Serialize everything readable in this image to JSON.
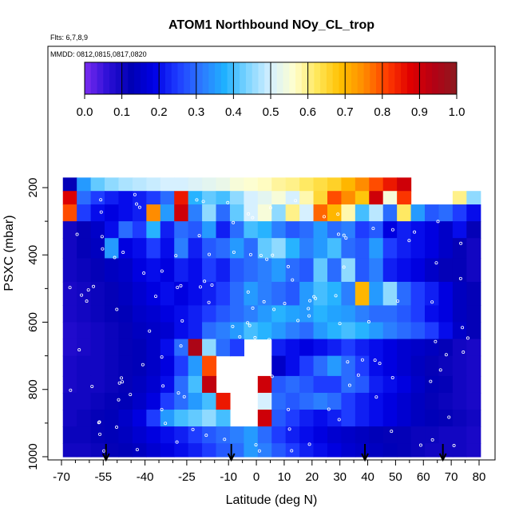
{
  "chart_data": {
    "type": "heatmap",
    "title": "ATOM1 Northbound NOy_CL_trop",
    "flights_label": "Flts: 6,7,8,9",
    "dates_label": "MMDD: 0812,0815,0817,0820",
    "xlabel": "Latitude (deg N)",
    "ylabel": "PSXC (mbar)",
    "xlim": [
      -70,
      80
    ],
    "ylim": [
      1000,
      130
    ],
    "x_ticks": [
      "-70",
      "-55",
      "-40",
      "-25",
      "-10",
      "0",
      "10",
      "20",
      "30",
      "40",
      "50",
      "60",
      "70",
      "80"
    ],
    "x_tick_values": [
      -70,
      -55,
      -40,
      -25,
      -10,
      0,
      10,
      20,
      30,
      40,
      50,
      60,
      70,
      80
    ],
    "y_ticks": [
      "200",
      "400",
      "600",
      "800",
      "1000"
    ],
    "y_tick_values": [
      200,
      400,
      600,
      800,
      1000
    ],
    "colorbar": {
      "min": 0.0,
      "max": 1.0,
      "tick_labels": [
        "0.0",
        "0.1",
        "0.2",
        "0.3",
        "0.4",
        "0.5",
        "0.6",
        "0.7",
        "0.8",
        "0.9",
        "1.0"
      ],
      "tick_values": [
        0.0,
        0.1,
        0.2,
        0.3,
        0.4,
        0.5,
        0.6,
        0.7,
        0.8,
        0.9,
        1.0
      ],
      "colors": [
        "#7b2cf0",
        "#2c0fd6",
        "#0000b4",
        "#0000e6",
        "#1e3cff",
        "#2d78ff",
        "#1fb0ff",
        "#7dd4ff",
        "#d6f0ff",
        "#ffffcf",
        "#ffe75a",
        "#ffc000",
        "#ff8c00",
        "#ff3c00",
        "#e00000",
        "#b40014",
        "#8c1a20"
      ]
    },
    "latitude_bins": [
      -67,
      -62,
      -57,
      -52,
      -47,
      -42,
      -37,
      -32,
      -27,
      -22,
      -17,
      -12,
      -7,
      -2,
      3,
      8,
      13,
      18,
      23,
      28,
      33,
      38,
      43,
      48,
      53,
      58,
      63,
      68,
      73,
      78
    ],
    "pressure_levels": [
      {
        "p_top": 170,
        "p_bottom": 210,
        "values": [
          0.12,
          0.35,
          0.42,
          0.45,
          0.47,
          0.48,
          0.49,
          0.5,
          0.5,
          0.51,
          0.52,
          0.53,
          0.55,
          0.56,
          0.57,
          0.59,
          0.6,
          0.62,
          0.64,
          0.66,
          0.7,
          0.75,
          0.8,
          0.85,
          0.9,
          null,
          null,
          null,
          null,
          null
        ]
      },
      {
        "p_top": 210,
        "p_bottom": 250,
        "values": [
          0.88,
          0.3,
          0.25,
          0.22,
          0.2,
          0.22,
          0.25,
          0.3,
          0.85,
          0.38,
          0.42,
          0.4,
          0.45,
          0.5,
          0.52,
          0.55,
          0.5,
          0.58,
          0.65,
          0.8,
          0.75,
          0.68,
          0.9,
          0.55,
          0.82,
          null,
          null,
          null,
          0.6,
          0.45
        ]
      },
      {
        "p_top": 250,
        "p_bottom": 300,
        "values": [
          0.8,
          0.25,
          0.2,
          0.18,
          0.2,
          0.22,
          0.75,
          0.35,
          0.9,
          0.32,
          0.45,
          0.3,
          0.42,
          0.5,
          0.55,
          0.45,
          0.6,
          0.5,
          0.78,
          0.7,
          0.58,
          0.4,
          0.48,
          0.3,
          0.62,
          0.35,
          0.28,
          0.3,
          0.25,
          0.2
        ]
      },
      {
        "p_top": 300,
        "p_bottom": 350,
        "values": [
          0.1,
          0.12,
          0.15,
          0.2,
          0.3,
          0.25,
          0.38,
          0.22,
          0.3,
          0.28,
          0.35,
          0.22,
          0.3,
          0.4,
          0.38,
          0.32,
          0.28,
          0.3,
          0.35,
          0.3,
          0.32,
          0.25,
          0.28,
          0.18,
          0.22,
          0.2,
          0.18,
          0.15,
          0.2,
          0.12
        ]
      },
      {
        "p_top": 350,
        "p_bottom": 410,
        "values": [
          0.1,
          0.12,
          0.14,
          0.35,
          0.18,
          0.2,
          0.25,
          0.2,
          0.32,
          0.22,
          0.28,
          0.3,
          0.35,
          0.3,
          0.42,
          0.45,
          0.38,
          0.32,
          0.35,
          0.4,
          0.3,
          0.28,
          0.35,
          0.25,
          0.22,
          0.2,
          0.18,
          0.15,
          0.12,
          0.1
        ]
      },
      {
        "p_top": 410,
        "p_bottom": 480,
        "values": [
          0.1,
          0.11,
          0.12,
          0.14,
          0.15,
          0.18,
          0.2,
          0.18,
          0.22,
          0.2,
          0.25,
          0.22,
          0.28,
          0.3,
          0.32,
          0.35,
          0.3,
          0.28,
          0.42,
          0.3,
          0.45,
          0.28,
          0.32,
          0.22,
          0.2,
          0.18,
          0.15,
          0.12,
          0.12,
          0.1
        ]
      },
      {
        "p_top": 480,
        "p_bottom": 550,
        "values": [
          0.09,
          0.1,
          0.11,
          0.12,
          0.14,
          0.16,
          0.18,
          0.2,
          0.18,
          0.2,
          0.22,
          0.25,
          0.3,
          0.35,
          0.32,
          0.3,
          0.28,
          0.35,
          0.4,
          0.38,
          0.32,
          0.7,
          0.35,
          0.45,
          0.3,
          0.25,
          0.22,
          0.18,
          0.14,
          0.12
        ]
      },
      {
        "p_top": 550,
        "p_bottom": 600,
        "values": [
          0.09,
          0.1,
          0.11,
          0.12,
          0.13,
          0.15,
          0.16,
          0.18,
          0.2,
          0.22,
          0.25,
          0.28,
          0.3,
          0.32,
          0.35,
          0.38,
          0.36,
          0.35,
          0.38,
          0.36,
          0.35,
          0.32,
          0.3,
          0.3,
          0.28,
          0.25,
          0.2,
          0.18,
          0.14,
          0.12
        ]
      },
      {
        "p_top": 600,
        "p_bottom": 650,
        "values": [
          0.08,
          0.09,
          0.1,
          0.11,
          0.12,
          0.14,
          0.15,
          0.16,
          0.2,
          0.22,
          0.3,
          0.32,
          0.35,
          0.4,
          0.38,
          0.35,
          0.32,
          0.3,
          0.35,
          0.38,
          0.4,
          0.38,
          0.35,
          0.32,
          0.3,
          0.28,
          0.25,
          0.2,
          0.15,
          0.12
        ]
      },
      {
        "p_top": 650,
        "p_bottom": 700,
        "values": [
          0.08,
          0.09,
          0.1,
          0.11,
          0.12,
          0.13,
          0.15,
          0.2,
          0.3,
          0.95,
          0.45,
          0.3,
          0.25,
          null,
          null,
          0.22,
          0.2,
          0.18,
          0.2,
          0.22,
          0.25,
          0.22,
          0.2,
          0.18,
          0.16,
          0.15,
          0.14,
          0.12,
          0.1,
          0.09
        ]
      },
      {
        "p_top": 700,
        "p_bottom": 760,
        "values": [
          0.09,
          0.1,
          0.1,
          0.11,
          0.12,
          0.13,
          0.15,
          0.18,
          0.25,
          0.35,
          0.8,
          null,
          null,
          null,
          null,
          0.15,
          0.2,
          0.25,
          0.3,
          0.35,
          0.3,
          0.25,
          0.2,
          0.18,
          0.16,
          0.14,
          0.12,
          0.11,
          0.1,
          0.09
        ]
      },
      {
        "p_top": 760,
        "p_bottom": 810,
        "values": [
          0.09,
          0.1,
          0.1,
          0.11,
          0.12,
          0.14,
          0.16,
          0.2,
          0.3,
          0.4,
          0.92,
          null,
          null,
          null,
          0.9,
          0.28,
          0.3,
          0.28,
          0.25,
          0.25,
          0.3,
          0.28,
          0.22,
          0.2,
          0.18,
          0.15,
          0.13,
          0.12,
          0.1,
          0.09
        ]
      },
      {
        "p_top": 810,
        "p_bottom": 860,
        "values": [
          0.1,
          0.1,
          0.11,
          0.12,
          0.13,
          0.15,
          0.18,
          0.25,
          0.3,
          0.35,
          0.4,
          0.85,
          null,
          null,
          0.5,
          0.3,
          0.28,
          0.3,
          0.32,
          0.3,
          0.25,
          0.22,
          0.2,
          0.18,
          0.16,
          0.14,
          0.12,
          0.11,
          0.1,
          0.09
        ]
      },
      {
        "p_top": 860,
        "p_bottom": 910,
        "values": [
          0.1,
          0.11,
          0.12,
          0.13,
          0.15,
          0.18,
          0.25,
          0.35,
          0.4,
          0.42,
          0.45,
          0.4,
          null,
          null,
          0.9,
          0.28,
          0.25,
          0.22,
          0.2,
          0.22,
          0.25,
          0.22,
          0.2,
          0.18,
          0.16,
          0.14,
          0.13,
          0.12,
          0.11,
          0.1
        ]
      },
      {
        "p_top": 910,
        "p_bottom": 960,
        "values": [
          0.11,
          0.11,
          0.12,
          0.13,
          0.14,
          0.16,
          0.18,
          0.2,
          0.22,
          0.25,
          0.28,
          0.3,
          0.32,
          0.35,
          0.3,
          0.25,
          0.22,
          0.2,
          0.18,
          0.16,
          0.15,
          0.14,
          0.13,
          0.12,
          0.12,
          0.11,
          0.11,
          0.1,
          0.1,
          0.09
        ]
      },
      {
        "p_top": 960,
        "p_bottom": 1000,
        "values": [
          0.1,
          0.1,
          0.11,
          0.12,
          0.13,
          0.14,
          0.16,
          0.18,
          0.2,
          0.22,
          0.25,
          0.28,
          0.3,
          0.35,
          0.32,
          0.28,
          0.25,
          0.22,
          0.2,
          0.18,
          0.16,
          0.15,
          0.14,
          0.13,
          0.12,
          0.11,
          0.1,
          0.1,
          0.1,
          0.09
        ]
      }
    ],
    "arrow_latitudes": [
      -54,
      -9,
      39,
      67
    ],
    "grid": false,
    "colorbar_placement": "top"
  }
}
